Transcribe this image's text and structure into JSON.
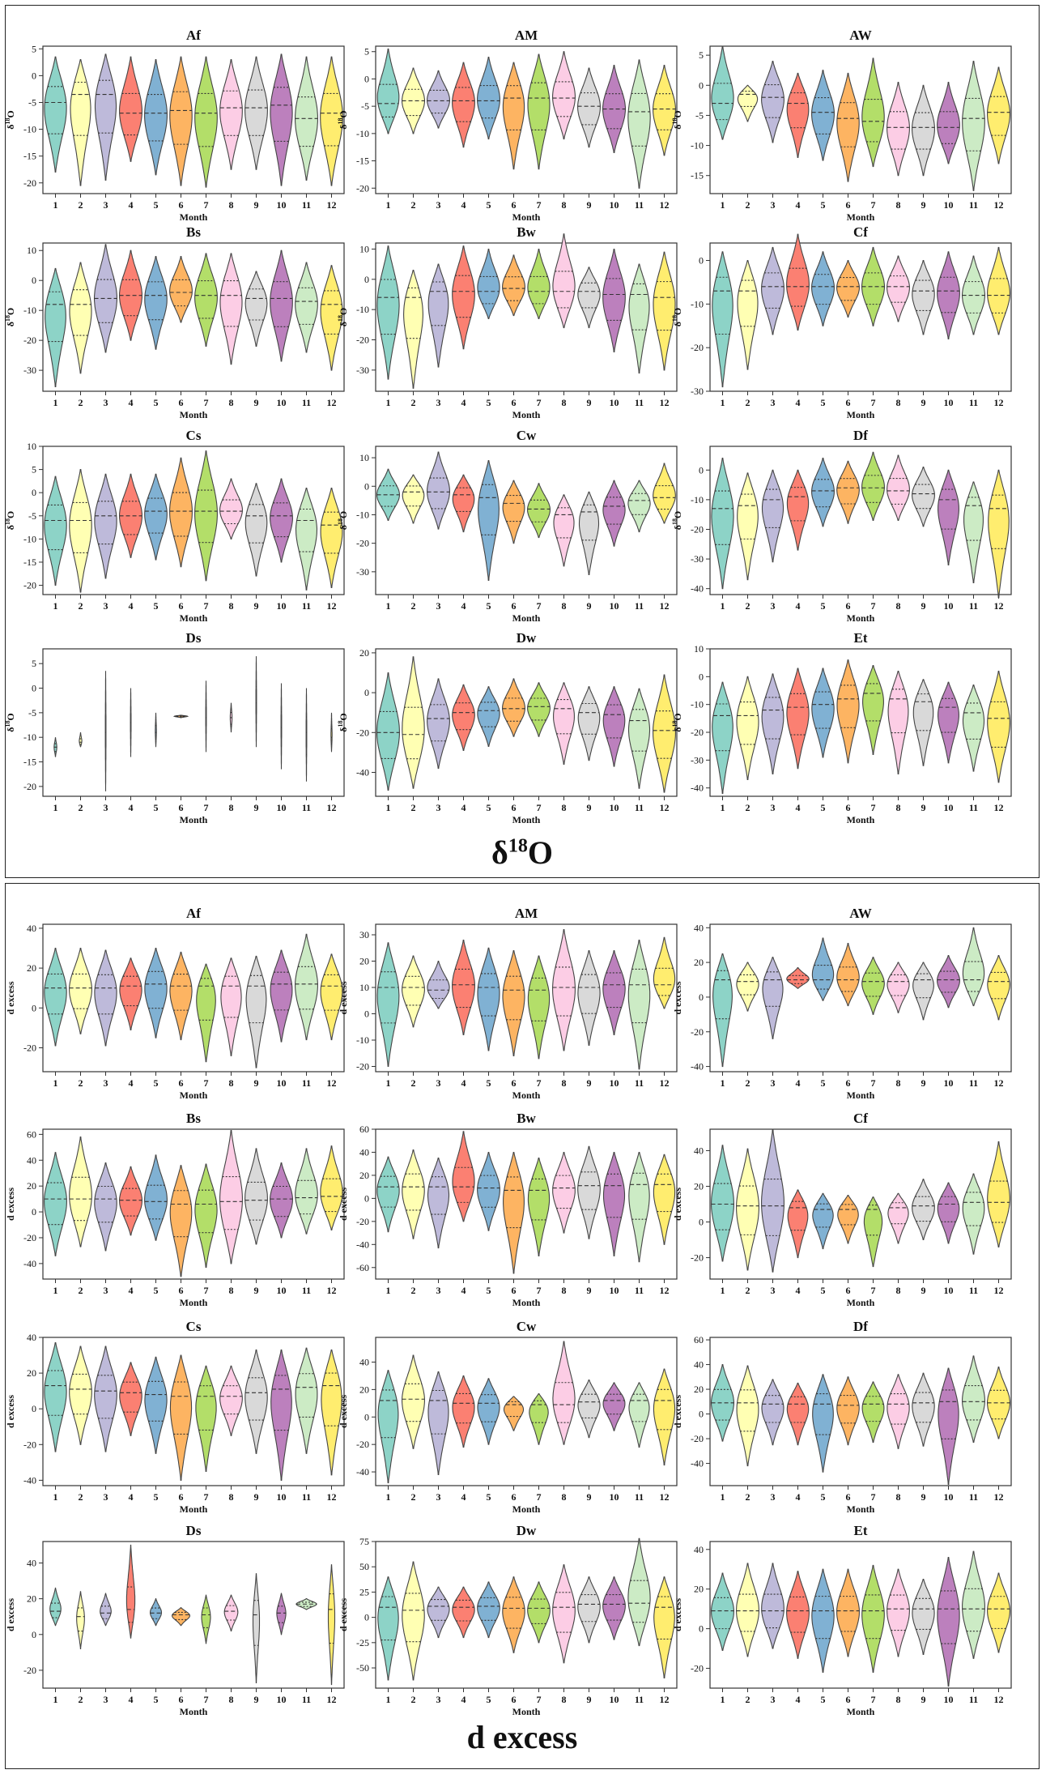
{
  "palette": [
    "#8dd3c7",
    "#ffffb3",
    "#bebada",
    "#fb8072",
    "#80b1d3",
    "#fdb462",
    "#b3de69",
    "#fccde5",
    "#d9d9d9",
    "#bc80bd",
    "#ccebc5",
    "#ffed6f"
  ],
  "months": [
    "1",
    "2",
    "3",
    "4",
    "5",
    "6",
    "7",
    "8",
    "9",
    "10",
    "11",
    "12"
  ],
  "xlabel": "Month",
  "sections": [
    {
      "title_main": "δ",
      "title_sup": "18",
      "title_tail": "O",
      "ylabel_main": "δ",
      "ylabel_sup": "18",
      "ylabel_tail": "O"
    },
    {
      "title_main": "d",
      "title_sup": "",
      "title_tail": " excess",
      "ylabel_main": "d excess",
      "ylabel_sup": "",
      "ylabel_tail": ""
    }
  ],
  "chart_data": [
    {
      "section": 0,
      "type": "violin",
      "title": "Af",
      "ylim": [
        -22,
        5.5
      ],
      "yticks": [
        5,
        0,
        -5,
        -10,
        -15,
        -20
      ],
      "min": [
        -18,
        -20.5,
        -19.5,
        -16,
        -18.5,
        -20.5,
        -20.8,
        -17.5,
        -17.5,
        -20.5,
        -19.5,
        -20.5
      ],
      "max": [
        3.5,
        3,
        4,
        3.5,
        3,
        3.5,
        3.5,
        3,
        3.5,
        4,
        3.5,
        3.5
      ],
      "median": [
        -5,
        -3.5,
        -3.5,
        -7,
        -7,
        -6.5,
        -7,
        -6,
        -6,
        -5.5,
        -8,
        -7
      ]
    },
    {
      "section": 0,
      "type": "violin",
      "title": "AM",
      "ylim": [
        -21,
        6
      ],
      "yticks": [
        5,
        0,
        -5,
        -10,
        -15,
        -20
      ],
      "min": [
        -10,
        -10,
        -9,
        -12.5,
        -11,
        -16.5,
        -16.5,
        -11,
        -12.5,
        -13.5,
        -20,
        -14
      ],
      "max": [
        5.5,
        2,
        1.5,
        3,
        4,
        3,
        4.5,
        5,
        2,
        2.5,
        3.5,
        2.5
      ],
      "median": [
        -4.5,
        -4,
        -4,
        -4,
        -4,
        -3.5,
        -3.5,
        -3.5,
        -5,
        -5.5,
        -6,
        -5.5
      ]
    },
    {
      "section": 0,
      "type": "violin",
      "title": "AW",
      "ylim": [
        -18,
        6.5
      ],
      "yticks": [
        5,
        0,
        -5,
        -10,
        -15
      ],
      "min": [
        -9,
        -6,
        -9.5,
        -12,
        -12.5,
        -16,
        -13.5,
        -15,
        -15,
        -13,
        -17.5,
        -13
      ],
      "max": [
        6.5,
        0,
        4,
        2,
        2.5,
        2,
        4.5,
        0.5,
        0,
        0.5,
        4,
        3
      ],
      "median": [
        -3,
        -1.5,
        -2,
        -3,
        -4.5,
        -5.5,
        -6,
        -7,
        -7,
        -7,
        -5.5,
        -4.5
      ]
    },
    {
      "section": 0,
      "type": "violin",
      "title": "Bs",
      "ylim": [
        -37,
        12.5
      ],
      "yticks": [
        10,
        0,
        -10,
        -20,
        -30
      ],
      "min": [
        -35.5,
        -31,
        -24,
        -20,
        -23,
        -14,
        -22,
        -28,
        -22,
        -27,
        -24,
        -30
      ],
      "max": [
        4,
        6,
        12,
        10,
        8,
        8,
        9,
        9,
        3,
        10,
        6,
        5
      ],
      "median": [
        -8,
        -8,
        -6,
        -5,
        -5,
        -4,
        -5,
        -5,
        -6,
        -6,
        -7,
        -8
      ]
    },
    {
      "section": 0,
      "type": "violin",
      "title": "Bw",
      "ylim": [
        -37,
        12
      ],
      "yticks": [
        10,
        0,
        -10,
        -20,
        -30
      ],
      "min": [
        -33,
        -36,
        -29,
        -23,
        -13,
        -12,
        -13,
        -16,
        -16,
        -24,
        -31,
        -30
      ],
      "max": [
        11,
        3,
        5,
        11,
        10,
        8,
        10,
        15,
        4,
        10,
        5,
        9
      ],
      "median": [
        -6,
        -6,
        -4,
        -4,
        -4,
        -3,
        -4,
        -4,
        -4,
        -5,
        -5,
        -6
      ]
    },
    {
      "section": 0,
      "type": "violin",
      "title": "Cf",
      "ylim": [
        -30,
        4
      ],
      "yticks": [
        0,
        -10,
        -20,
        -30
      ],
      "min": [
        -29,
        -25,
        -17,
        -16,
        -15,
        -13,
        -15,
        -14,
        -17,
        -18,
        -17,
        -17
      ],
      "max": [
        2,
        0,
        3,
        6,
        2,
        0,
        3,
        1,
        0,
        2,
        1,
        3
      ],
      "median": [
        -7,
        -7,
        -6,
        -6,
        -6,
        -6,
        -6,
        -6,
        -7,
        -7,
        -8,
        -8
      ]
    },
    {
      "section": 0,
      "type": "violin",
      "title": "Cs",
      "ylim": [
        -22,
        10
      ],
      "yticks": [
        10,
        5,
        0,
        -5,
        -10,
        -15,
        -20
      ],
      "min": [
        -20,
        -21.5,
        -18.5,
        -14,
        -14.5,
        -16,
        -19,
        -10,
        -18,
        -15,
        -21,
        -20.5
      ],
      "max": [
        3.5,
        5,
        4,
        4,
        4,
        7.5,
        9,
        3,
        2,
        3,
        1,
        1
      ],
      "median": [
        -6,
        -6,
        -5,
        -5,
        -4,
        -4,
        -4,
        -4,
        -5,
        -5,
        -6,
        -7
      ]
    },
    {
      "section": 0,
      "type": "violin",
      "title": "Cw",
      "ylim": [
        -38,
        14
      ],
      "yticks": [
        10,
        0,
        -10,
        -20,
        -30
      ],
      "min": [
        -12,
        -13,
        -15,
        -16,
        -33,
        -20,
        -18,
        -28,
        -31,
        -21,
        -16,
        -13
      ],
      "max": [
        6,
        4,
        12,
        4,
        9,
        2,
        1,
        -3,
        -2,
        2,
        2,
        8
      ],
      "median": [
        -3,
        -2,
        -2,
        -3,
        -4,
        -6,
        -8,
        -10,
        -9,
        -7,
        -5,
        -4
      ]
    },
    {
      "section": 0,
      "type": "violin",
      "title": "Df",
      "ylim": [
        -42,
        8
      ],
      "yticks": [
        0,
        -10,
        -20,
        -30,
        -40
      ],
      "min": [
        -40,
        -37,
        -31,
        -27,
        -19,
        -18,
        -17,
        -17,
        -19,
        -32,
        -38,
        -43
      ],
      "max": [
        4,
        -1,
        0,
        0,
        4,
        3,
        6,
        5,
        1,
        0,
        -4,
        0
      ],
      "median": [
        -13,
        -12,
        -10,
        -9,
        -7,
        -6,
        -6,
        -7,
        -8,
        -10,
        -12,
        -13
      ]
    },
    {
      "section": 0,
      "type": "violin",
      "title": "Ds",
      "ylim": [
        -22,
        8
      ],
      "yticks": [
        5,
        0,
        -5,
        -10,
        -15,
        -20
      ],
      "min": [
        -14,
        -12,
        -21,
        -14,
        -12,
        -6,
        -13,
        -9,
        -12,
        -16.5,
        -19,
        -13
      ],
      "max": [
        -10,
        -9,
        3.5,
        0,
        -5,
        -5.5,
        1.5,
        -3,
        6.5,
        1,
        0,
        -5
      ],
      "median": [
        -12,
        -11,
        -9,
        -7,
        -9,
        -5.7,
        -6,
        -6,
        -3,
        -8,
        -9,
        -10
      ],
      "widths": [
        0.12,
        0.12,
        0.03,
        0.03,
        0.05,
        0.6,
        0.03,
        0.08,
        0.03,
        0.03,
        0.03,
        0.05
      ]
    },
    {
      "section": 0,
      "type": "violin",
      "title": "Dw",
      "ylim": [
        -52,
        22
      ],
      "yticks": [
        20,
        0,
        -20,
        -40
      ],
      "min": [
        -49,
        -48,
        -38,
        -29,
        -27,
        -22,
        -22,
        -36,
        -34,
        -37,
        -48,
        -50
      ],
      "max": [
        10,
        18,
        7,
        4,
        3,
        7,
        5,
        5,
        3,
        3,
        2,
        9
      ],
      "median": [
        -20,
        -21,
        -13,
        -10,
        -9,
        -8,
        -7,
        -8,
        -10,
        -11,
        -14,
        -19
      ]
    },
    {
      "section": 0,
      "type": "violin",
      "title": "Et",
      "ylim": [
        -43,
        10
      ],
      "yticks": [
        10,
        0,
        -10,
        -20,
        -30,
        -40
      ],
      "min": [
        -42,
        -37,
        -35,
        -33,
        -29,
        -31,
        -28,
        -35,
        -32,
        -31,
        -34,
        -38
      ],
      "max": [
        -2,
        0,
        1,
        3,
        3,
        6,
        4,
        2,
        -1,
        -2,
        -3,
        2
      ],
      "median": [
        -14,
        -14,
        -12,
        -11,
        -10,
        -8,
        -6,
        -8,
        -9,
        -11,
        -13,
        -15
      ]
    },
    {
      "section": 1,
      "type": "violin",
      "title": "Af",
      "ylim": [
        -32,
        42
      ],
      "yticks": [
        40,
        20,
        0,
        -20
      ],
      "min": [
        -19,
        -13,
        -19,
        -11,
        -15,
        -16,
        -27,
        -24,
        -30,
        -17,
        -16,
        -16
      ],
      "max": [
        30,
        30,
        29,
        25,
        30,
        28,
        22,
        25,
        26,
        29,
        37,
        27
      ],
      "median": [
        10,
        10,
        10,
        11,
        12,
        11,
        11,
        11,
        11,
        12,
        12,
        11
      ]
    },
    {
      "section": 1,
      "type": "violin",
      "title": "AM",
      "ylim": [
        -22,
        34
      ],
      "yticks": [
        30,
        20,
        10,
        0,
        -10,
        -20
      ],
      "min": [
        -20,
        -5,
        2,
        -8,
        -14,
        -16,
        -17,
        -14,
        -12,
        -8,
        -21,
        2
      ],
      "max": [
        27,
        22,
        20,
        28,
        25,
        24,
        22,
        32,
        24,
        24,
        28,
        29
      ],
      "median": [
        10,
        10,
        9,
        11,
        10,
        9,
        9,
        10,
        10,
        11,
        11,
        11
      ]
    },
    {
      "section": 1,
      "type": "violin",
      "title": "AW",
      "ylim": [
        -43,
        42
      ],
      "yticks": [
        40,
        20,
        0,
        -20,
        -40
      ],
      "min": [
        -40,
        -8,
        -24,
        5,
        -2,
        -5,
        -10,
        -9,
        -13,
        -6,
        -5,
        -13
      ],
      "max": [
        25,
        20,
        23,
        17,
        34,
        31,
        23,
        20,
        20,
        24,
        40,
        24
      ],
      "median": [
        10,
        9,
        10,
        10,
        10,
        10,
        9,
        9,
        10,
        10,
        10,
        9
      ]
    },
    {
      "section": 1,
      "type": "violin",
      "title": "Bs",
      "ylim": [
        -52,
        64
      ],
      "yticks": [
        60,
        40,
        20,
        0,
        -20,
        -40
      ],
      "min": [
        -34,
        -27,
        -30,
        -18,
        -22,
        -50,
        -43,
        -40,
        -25,
        -20,
        -17,
        -14
      ],
      "max": [
        46,
        58,
        38,
        35,
        44,
        36,
        37,
        63,
        49,
        38,
        49,
        51
      ],
      "median": [
        10,
        10,
        10,
        9,
        8,
        6,
        6,
        8,
        9,
        10,
        11,
        12
      ]
    },
    {
      "section": 1,
      "type": "violin",
      "title": "Bw",
      "ylim": [
        -70,
        60
      ],
      "yticks": [
        60,
        40,
        20,
        0,
        -20,
        -40,
        -60
      ],
      "min": [
        -29,
        -35,
        -43,
        -20,
        -28,
        -65,
        -50,
        -30,
        -35,
        -50,
        -55,
        -40
      ],
      "max": [
        36,
        42,
        35,
        58,
        40,
        40,
        35,
        40,
        45,
        40,
        40,
        38
      ],
      "median": [
        10,
        10,
        10,
        10,
        9,
        7,
        7,
        9,
        11,
        11,
        12,
        12
      ]
    },
    {
      "section": 1,
      "type": "violin",
      "title": "Cf",
      "ylim": [
        -32,
        52
      ],
      "yticks": [
        40,
        20,
        0,
        -20
      ],
      "min": [
        -22,
        -27,
        -28,
        -20,
        -15,
        -12,
        -25,
        -12,
        -10,
        -12,
        -18,
        -14
      ],
      "max": [
        43,
        41,
        52,
        18,
        16,
        15,
        14,
        16,
        24,
        22,
        27,
        45
      ],
      "median": [
        10,
        9,
        9,
        8,
        7,
        7,
        7,
        8,
        9,
        10,
        11,
        11
      ]
    },
    {
      "section": 1,
      "type": "violin",
      "title": "Cs",
      "ylim": [
        -43,
        40
      ],
      "yticks": [
        40,
        20,
        0,
        -20,
        -40
      ],
      "min": [
        -24,
        -20,
        -24,
        -15,
        -25,
        -40,
        -35,
        -15,
        -25,
        -40,
        -25,
        -37
      ],
      "max": [
        37,
        35,
        35,
        26,
        29,
        30,
        24,
        24,
        33,
        33,
        34,
        33
      ],
      "median": [
        13,
        11,
        10,
        9,
        8,
        7,
        7,
        7,
        9,
        11,
        12,
        13
      ]
    },
    {
      "section": 1,
      "type": "violin",
      "title": "Cw",
      "ylim": [
        -50,
        58
      ],
      "yticks": [
        40,
        20,
        0,
        -20,
        -40
      ],
      "min": [
        -48,
        -23,
        -42,
        -22,
        -20,
        -10,
        -20,
        -20,
        -15,
        -10,
        -22,
        -35
      ],
      "max": [
        34,
        45,
        33,
        30,
        28,
        15,
        17,
        55,
        27,
        25,
        25,
        35
      ],
      "median": [
        12,
        13,
        12,
        10,
        10,
        9,
        9,
        9,
        11,
        12,
        12,
        12
      ]
    },
    {
      "section": 1,
      "type": "violin",
      "title": "Df",
      "ylim": [
        -58,
        62
      ],
      "yticks": [
        60,
        40,
        20,
        0,
        -20,
        -40
      ],
      "min": [
        -22,
        -42,
        -25,
        -25,
        -47,
        -25,
        -23,
        -28,
        -26,
        -57,
        -23,
        -20
      ],
      "max": [
        40,
        39,
        28,
        25,
        32,
        30,
        26,
        32,
        33,
        37,
        47,
        38
      ],
      "median": [
        9,
        9,
        8,
        8,
        8,
        7,
        8,
        8,
        9,
        10,
        10,
        9
      ]
    },
    {
      "section": 1,
      "type": "violin",
      "title": "Ds",
      "ylim": [
        -30,
        52
      ],
      "yticks": [
        40,
        20,
        0,
        -20
      ],
      "min": [
        5,
        -8,
        5,
        -2,
        5,
        5,
        -5,
        2,
        -27,
        0,
        14,
        -28
      ],
      "max": [
        26,
        24,
        23,
        50,
        20,
        15,
        22,
        22,
        34,
        23,
        20,
        39
      ],
      "median": [
        13,
        10,
        12,
        14,
        12,
        11,
        11,
        13,
        11,
        12,
        17,
        14
      ],
      "widths": [
        0.5,
        0.35,
        0.5,
        0.4,
        0.5,
        0.8,
        0.4,
        0.6,
        0.3,
        0.4,
        0.9,
        0.3
      ]
    },
    {
      "section": 1,
      "type": "violin",
      "title": "Dw",
      "ylim": [
        -70,
        75
      ],
      "yticks": [
        75,
        50,
        25,
        0,
        -25,
        -50
      ],
      "min": [
        -62,
        -62,
        -20,
        -20,
        -20,
        -35,
        -25,
        -45,
        -25,
        -22,
        -28,
        -60
      ],
      "max": [
        40,
        55,
        30,
        30,
        35,
        40,
        35,
        52,
        40,
        40,
        78,
        40
      ],
      "median": [
        10,
        7,
        11,
        10,
        11,
        9,
        9,
        10,
        13,
        13,
        14,
        10
      ]
    },
    {
      "section": 1,
      "type": "violin",
      "title": "Et",
      "ylim": [
        -30,
        44
      ],
      "yticks": [
        40,
        20,
        0,
        -20
      ],
      "min": [
        -11,
        -14,
        -10,
        -15,
        -22,
        -14,
        -22,
        -14,
        -13,
        -29,
        -15,
        -12
      ],
      "max": [
        28,
        33,
        33,
        29,
        30,
        30,
        32,
        30,
        25,
        36,
        39,
        28
      ],
      "median": [
        9,
        9,
        9,
        9,
        9,
        9,
        9,
        10,
        10,
        10,
        10,
        10
      ]
    }
  ]
}
